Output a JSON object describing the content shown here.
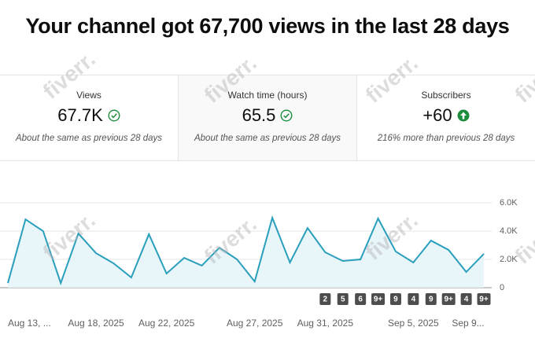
{
  "header": {
    "title": "Your channel got 67,700 views in the last 28 days"
  },
  "cards": [
    {
      "label": "Views",
      "value": "67.7K",
      "note": "About the same as previous 28 days",
      "trend": "same"
    },
    {
      "label": "Watch time (hours)",
      "value": "65.5",
      "note": "About the same as previous 28 days",
      "trend": "same"
    },
    {
      "label": "Subscribers",
      "value": "+60",
      "note": "216% more than previous 28 days",
      "trend": "up"
    }
  ],
  "watermark": "fiverr.",
  "chart_data": {
    "type": "line",
    "categories": [
      "Aug 13, ...",
      null,
      null,
      null,
      null,
      "Aug 18, 2025",
      null,
      null,
      null,
      "Aug 22, 2025",
      null,
      null,
      null,
      null,
      "Aug 27, 2025",
      null,
      null,
      null,
      "Aug 31, 2025",
      null,
      null,
      null,
      null,
      "Sep 5, 2025",
      null,
      null,
      null,
      "Sep 9..."
    ],
    "series": [
      {
        "color": "#2a9fbc",
        "values": [
          330,
          4830,
          4000,
          330,
          3830,
          2440,
          1720,
          720,
          3780,
          1000,
          2110,
          1560,
          2830,
          2000,
          440,
          4940,
          1780,
          4220,
          2500,
          1890,
          2000,
          4890,
          2560,
          1780,
          3330,
          2670,
          1110,
          2390
        ]
      }
    ],
    "markers": [
      null,
      null,
      null,
      null,
      null,
      null,
      null,
      null,
      null,
      null,
      null,
      null,
      null,
      null,
      null,
      null,
      null,
      null,
      "2",
      "5",
      "6",
      "9+",
      "9",
      "4",
      "9",
      "9+",
      "4",
      "9+"
    ],
    "ylim": [
      0,
      6000
    ],
    "yticks": [
      0,
      {
        "value": 2000,
        "label": "2.0K"
      },
      {
        "value": 4000,
        "label": "4.0K"
      },
      {
        "value": 6000,
        "label": "6.0K"
      }
    ],
    "grid": true
  }
}
